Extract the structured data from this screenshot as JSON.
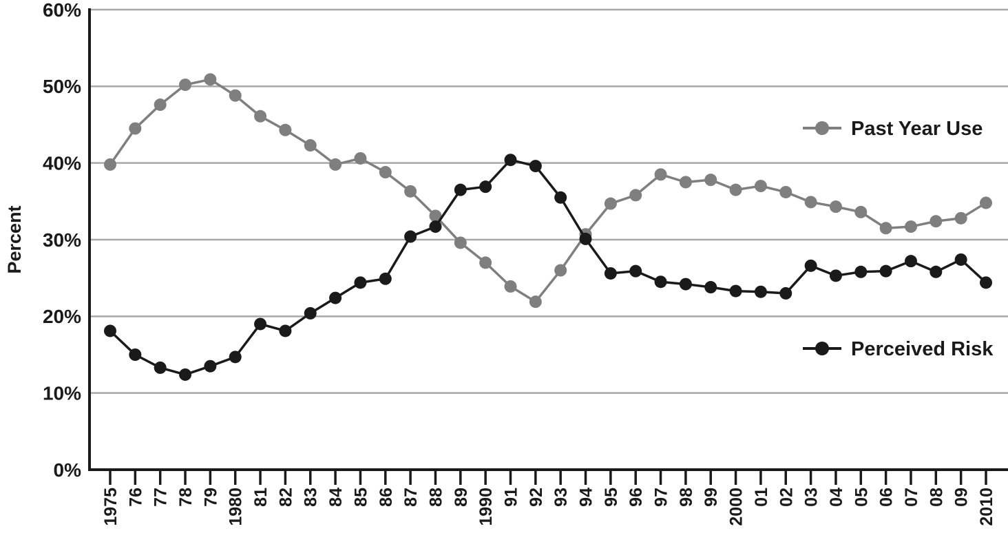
{
  "chart_data": {
    "type": "line",
    "title": "",
    "ylabel": "Percent",
    "ylim": [
      0,
      60
    ],
    "yticks": [
      0,
      10,
      20,
      30,
      40,
      50,
      60
    ],
    "ytick_labels": [
      "0%",
      "10%",
      "20%",
      "30%",
      "40%",
      "50%",
      "60%"
    ],
    "grid": true,
    "legend_position": "right-inside",
    "x_labels": [
      "1975",
      "76",
      "77",
      "78",
      "79",
      "1980",
      "81",
      "82",
      "83",
      "84",
      "85",
      "86",
      "87",
      "88",
      "89",
      "1990",
      "91",
      "92",
      "93",
      "94",
      "95",
      "96",
      "97",
      "98",
      "99",
      "2000",
      "01",
      "02",
      "03",
      "04",
      "05",
      "06",
      "07",
      "08",
      "09",
      "2010"
    ],
    "series": [
      {
        "name": "Past Year Use",
        "color": "#7f7f7f",
        "values": [
          39.8,
          44.5,
          47.6,
          50.2,
          50.9,
          48.8,
          46.1,
          44.3,
          42.3,
          39.8,
          40.6,
          38.8,
          36.3,
          33.1,
          29.6,
          27.0,
          23.9,
          21.9,
          26.0,
          30.7,
          34.7,
          35.8,
          38.5,
          37.5,
          37.8,
          36.5,
          37.0,
          36.2,
          34.9,
          34.3,
          33.6,
          31.5,
          31.7,
          32.4,
          32.8,
          34.8
        ]
      },
      {
        "name": "Perceived Risk",
        "color": "#1a1a1a",
        "values": [
          18.1,
          15.0,
          13.3,
          12.4,
          13.5,
          14.7,
          19.0,
          18.1,
          20.4,
          22.4,
          24.4,
          24.9,
          30.4,
          31.7,
          36.5,
          36.9,
          40.4,
          39.6,
          35.5,
          30.1,
          25.6,
          25.9,
          24.5,
          24.2,
          23.8,
          23.3,
          23.2,
          23.0,
          26.6,
          25.3,
          25.8,
          25.9,
          27.2,
          25.8,
          27.4,
          24.4
        ]
      }
    ],
    "legend": [
      {
        "label": "Past Year Use",
        "color": "#7f7f7f"
      },
      {
        "label": "Perceived Risk",
        "color": "#1a1a1a"
      }
    ]
  }
}
